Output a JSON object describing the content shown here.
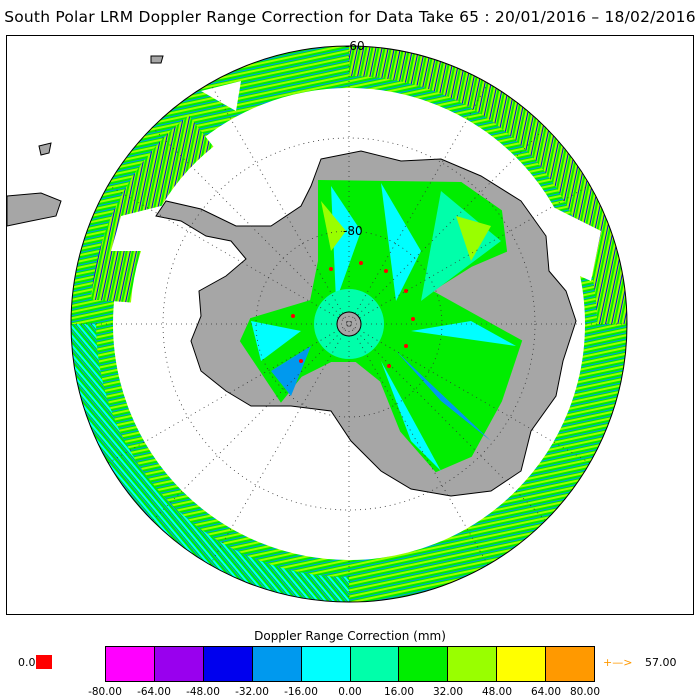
{
  "title": "South Polar LRM Doppler Range Correction for Data Take 65 : 20/01/2016 – 18/02/2016",
  "map": {
    "projection": "south-polar-stereographic",
    "lat_labels": [
      "-60",
      "-80"
    ],
    "ocean_color": "#ffffff",
    "land_color": "#a6a6a6",
    "pole_hole_color": "#a6a6a6"
  },
  "colorbar": {
    "title": "Doppler Range Correction (mm)",
    "ticks": [
      "-80.00",
      "-64.00",
      "-48.00",
      "-32.00",
      "-16.00",
      "0.00",
      "16.00",
      "32.00",
      "48.00",
      "64.00",
      "80.00"
    ],
    "colors": [
      "#ff00ff",
      "#9900ee",
      "#0000ee",
      "#0099ee",
      "#00ffff",
      "#00ffaa",
      "#00ee00",
      "#99ff00",
      "#ffff00",
      "#ff9900"
    ],
    "under_label": "0.0",
    "under_color": "#ff0000",
    "over_arrow": "+—>",
    "over_value": "57.00",
    "over_color": "#ff9900"
  }
}
